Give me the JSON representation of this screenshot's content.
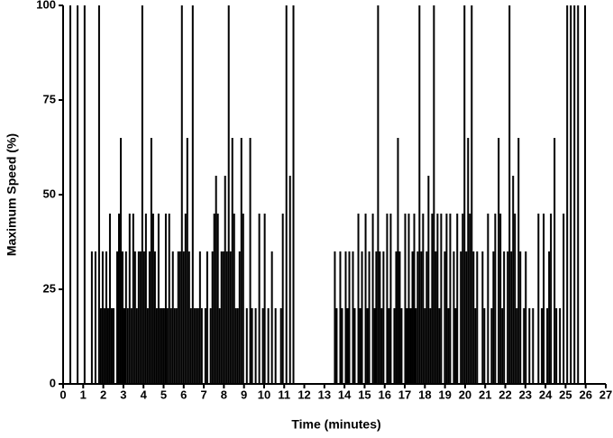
{
  "chart_data": {
    "type": "stem",
    "xlabel": "Time (minutes)",
    "ylabel": "Maximum Speed (%)",
    "xlim": [
      0,
      27
    ],
    "xticks": [
      0,
      1,
      2,
      3,
      4,
      5,
      6,
      7,
      8,
      9,
      10,
      11,
      12,
      13,
      14,
      15,
      16,
      17,
      18,
      19,
      20,
      21,
      22,
      23,
      24,
      25,
      26,
      27
    ],
    "ylim": [
      0,
      100
    ],
    "yticks": [
      0,
      25,
      50,
      75,
      100
    ],
    "series": [
      {
        "color": "#000000",
        "x": [
          0,
          0.36,
          0.72,
          1.07,
          1.43,
          1.61,
          1.79,
          1.88,
          1.97,
          2.06,
          2.15,
          2.24,
          2.33,
          2.42,
          2.51,
          2.69,
          2.78,
          2.87,
          2.96,
          3.05,
          3.13,
          3.22,
          3.31,
          3.4,
          3.49,
          3.58,
          3.67,
          3.76,
          3.85,
          3.94,
          4.03,
          4.12,
          4.21,
          4.3,
          4.39,
          4.48,
          4.57,
          4.66,
          4.75,
          4.84,
          4.93,
          5.02,
          5.11,
          5.19,
          5.28,
          5.37,
          5.46,
          5.55,
          5.64,
          5.73,
          5.82,
          5.91,
          6.0,
          6.09,
          6.18,
          6.27,
          6.36,
          6.45,
          6.54,
          6.63,
          6.72,
          6.81,
          6.9,
          7.08,
          7.17,
          7.34,
          7.43,
          7.52,
          7.61,
          7.7,
          7.79,
          7.88,
          7.97,
          8.06,
          8.15,
          8.24,
          8.33,
          8.42,
          8.51,
          8.6,
          8.69,
          8.78,
          8.87,
          8.96,
          9.14,
          9.31,
          9.4,
          9.58,
          9.76,
          9.94,
          10.03,
          10.21,
          10.39,
          10.57,
          10.84,
          10.93,
          11.11,
          11.29,
          11.46,
          13.52,
          13.61,
          13.79,
          13.88,
          14.06,
          14.15,
          14.24,
          14.42,
          14.51,
          14.69,
          14.78,
          14.87,
          15.05,
          15.14,
          15.23,
          15.41,
          15.5,
          15.58,
          15.67,
          15.76,
          15.85,
          15.94,
          16.12,
          16.21,
          16.3,
          16.48,
          16.57,
          16.66,
          16.75,
          16.84,
          17.02,
          17.11,
          17.2,
          17.29,
          17.38,
          17.47,
          17.55,
          17.64,
          17.73,
          17.82,
          17.91,
          18.0,
          18.09,
          18.18,
          18.27,
          18.36,
          18.45,
          18.54,
          18.63,
          18.72,
          18.81,
          18.99,
          19.08,
          19.17,
          19.26,
          19.44,
          19.53,
          19.61,
          19.79,
          19.88,
          19.97,
          20.06,
          20.15,
          20.24,
          20.33,
          20.42,
          20.51,
          20.6,
          20.87,
          20.96,
          21.14,
          21.32,
          21.41,
          21.5,
          21.67,
          21.76,
          21.85,
          21.94,
          22.12,
          22.21,
          22.3,
          22.39,
          22.48,
          22.57,
          22.66,
          22.75,
          22.93,
          23.02,
          23.2,
          23.38,
          23.65,
          23.82,
          23.91,
          24.09,
          24.18,
          24.27,
          24.45,
          24.54,
          24.72,
          24.9,
          25.08,
          25.26,
          25.44,
          25.62,
          25.97
        ],
        "values": [
          100,
          100,
          100,
          100,
          35,
          35,
          100,
          20,
          35,
          20,
          35,
          20,
          45,
          20,
          20,
          35,
          45,
          65,
          35,
          20,
          35,
          20,
          45,
          20,
          45,
          35,
          20,
          35,
          35,
          100,
          35,
          45,
          20,
          35,
          65,
          45,
          35,
          20,
          45,
          20,
          20,
          20,
          45,
          20,
          45,
          20,
          35,
          20,
          20,
          35,
          35,
          100,
          35,
          45,
          65,
          35,
          20,
          100,
          20,
          20,
          20,
          35,
          20,
          20,
          35,
          20,
          35,
          45,
          55,
          45,
          20,
          35,
          35,
          55,
          35,
          100,
          35,
          65,
          45,
          20,
          20,
          35,
          65,
          45,
          20,
          65,
          20,
          20,
          45,
          20,
          45,
          20,
          35,
          20,
          20,
          45,
          100,
          55,
          100,
          35,
          20,
          35,
          20,
          35,
          20,
          35,
          35,
          20,
          45,
          20,
          35,
          45,
          20,
          35,
          45,
          20,
          35,
          100,
          35,
          20,
          35,
          45,
          20,
          45,
          20,
          35,
          65,
          35,
          20,
          45,
          20,
          45,
          20,
          35,
          45,
          20,
          35,
          100,
          35,
          45,
          20,
          35,
          55,
          20,
          45,
          100,
          35,
          45,
          20,
          45,
          35,
          45,
          20,
          45,
          35,
          20,
          45,
          35,
          45,
          100,
          35,
          65,
          45,
          100,
          35,
          20,
          35,
          35,
          20,
          45,
          20,
          35,
          45,
          65,
          45,
          20,
          35,
          35,
          100,
          35,
          55,
          45,
          20,
          65,
          35,
          20,
          35,
          20,
          20,
          45,
          20,
          45,
          20,
          35,
          45,
          65,
          20,
          20,
          45,
          100,
          100,
          100,
          100,
          100
        ]
      }
    ]
  }
}
